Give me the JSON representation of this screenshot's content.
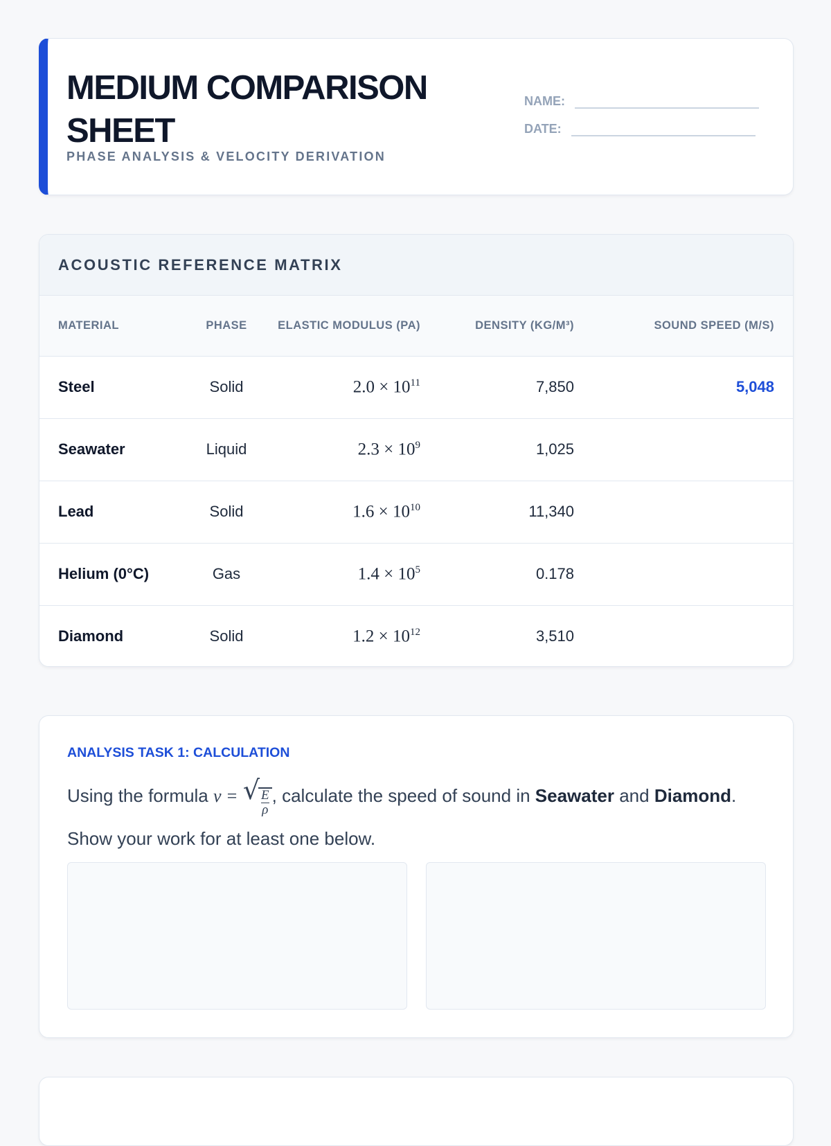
{
  "header": {
    "title": "MEDIUM COMPARISON SHEET",
    "subtitle": "PHASE ANALYSIS & VELOCITY DERIVATION",
    "name_label": "NAME:",
    "date_label": "DATE:",
    "accent": "#1d4ed8"
  },
  "table": {
    "title": "ACOUSTIC REFERENCE MATRIX",
    "columns": [
      "MATERIAL",
      "PHASE",
      "ELASTIC MODULUS (PA)",
      "DENSITY (KG/M³)",
      "SOUND SPEED (M/S)"
    ],
    "rows": [
      {
        "material": "Steel",
        "phase": "Solid",
        "mod_base": "2.0 × 10",
        "mod_exp": "11",
        "density": "7,850",
        "speed": "5,048"
      },
      {
        "material": "Seawater",
        "phase": "Liquid",
        "mod_base": "2.3 × 10",
        "mod_exp": "9",
        "density": "1,025",
        "speed": ""
      },
      {
        "material": "Lead",
        "phase": "Solid",
        "mod_base": "1.6 × 10",
        "mod_exp": "10",
        "density": "11,340",
        "speed": ""
      },
      {
        "material": "Helium (0°C)",
        "phase": "Gas",
        "mod_base": "1.4 × 10",
        "mod_exp": "5",
        "density": "0.178",
        "speed": ""
      },
      {
        "material": "Diamond",
        "phase": "Solid",
        "mod_base": "1.2 × 10",
        "mod_exp": "12",
        "density": "3,510",
        "speed": ""
      }
    ]
  },
  "task": {
    "label": "ANALYSIS TASK 1: CALCULATION",
    "text1": "Using the formula ",
    "formula_lhs": "v =",
    "num": "E",
    "den": "ρ",
    "text2": ", calculate the speed of sound in ",
    "bold1": "Seawater",
    "text3": " and ",
    "bold2": "Diamond",
    "text4": ". Show your work for at least one below."
  }
}
